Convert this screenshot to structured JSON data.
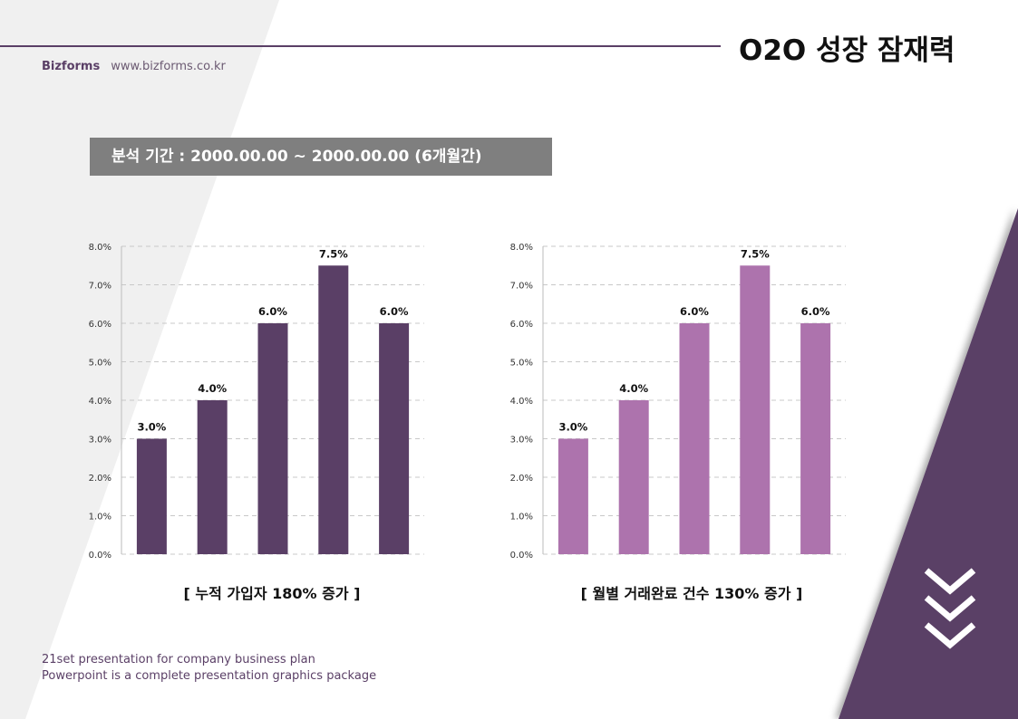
{
  "header": {
    "title": "O2O 성장 잠재력",
    "brand": "Bizforms",
    "url": "www.bizforms.co.kr"
  },
  "period": "분석 기간 : 2000.00.00  ~ 2000.00.00 (6개월간)",
  "colors": {
    "accent": "#5a3f66",
    "bar_left": "#5a3f66",
    "bar_right": "#ad73ad",
    "gray_box": "#7f7f7f"
  },
  "chart_data": [
    {
      "type": "bar",
      "categories": [
        "",
        "",
        "",
        "",
        ""
      ],
      "values": [
        3.0,
        4.0,
        6.0,
        7.5,
        6.0
      ],
      "labels": [
        "3.0%",
        "4.0%",
        "6.0%",
        "7.5%",
        "6.0%"
      ],
      "ylim": [
        0,
        8
      ],
      "yticks": [
        "0.0%",
        "1.0%",
        "2.0%",
        "3.0%",
        "4.0%",
        "5.0%",
        "6.0%",
        "7.0%",
        "8.0%"
      ],
      "grid": true,
      "caption": "[ 누적 가입자 180% 증가 ]"
    },
    {
      "type": "bar",
      "categories": [
        "",
        "",
        "",
        "",
        ""
      ],
      "values": [
        3.0,
        4.0,
        6.0,
        7.5,
        6.0
      ],
      "labels": [
        "3.0%",
        "4.0%",
        "6.0%",
        "7.5%",
        "6.0%"
      ],
      "ylim": [
        0,
        8
      ],
      "yticks": [
        "0.0%",
        "1.0%",
        "2.0%",
        "3.0%",
        "4.0%",
        "5.0%",
        "6.0%",
        "7.0%",
        "8.0%"
      ],
      "grid": true,
      "caption": "[ 월별 거래완료 건수 130% 증가 ]"
    }
  ],
  "footer": {
    "line1": "21set presentation for company business plan",
    "line2": "Powerpoint is a complete presentation graphics package"
  },
  "icons": {
    "decor": "triple-chevron-down-icon"
  }
}
